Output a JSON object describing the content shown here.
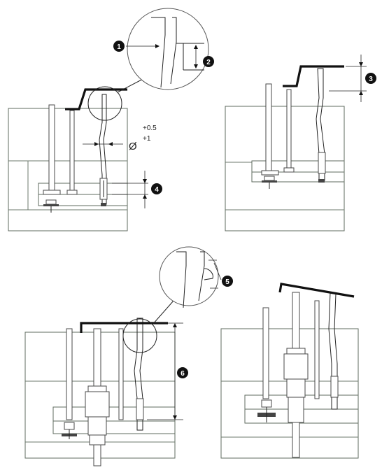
{
  "callouts": [
    {
      "number": "1"
    },
    {
      "number": "2"
    },
    {
      "number": "3"
    },
    {
      "number": "4"
    },
    {
      "number": "5"
    },
    {
      "number": "6"
    }
  ],
  "tolerance": {
    "diameter_symbol": "Ø",
    "upper": "+0.5",
    "lower": "+1"
  },
  "colors": {
    "line": "#222222",
    "plate": "#5f6b5f",
    "callout": "#111111"
  }
}
